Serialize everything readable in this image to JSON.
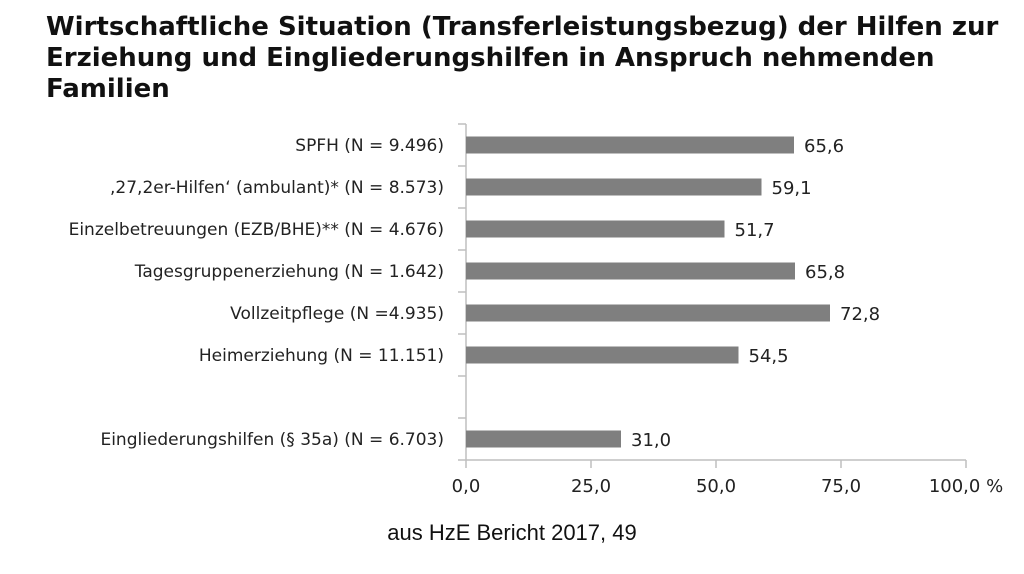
{
  "chart_data": {
    "type": "bar",
    "orientation": "horizontal",
    "title": "Wirtschaftliche Situation (Transferleistungsbezug) der Hilfen zur Erziehung und Eingliederungshilfen in Anspruch nehmenden Familien",
    "categories": [
      "SPFH (N = 9.496)",
      ",27,2er-Hilfen‘ (ambulant)* (N = 8.573)",
      "Einzelbetreuungen (EZB/BHE)** (N = 4.676)",
      "Tagesgruppenerziehung (N = 1.642)",
      "Vollzeitpflege (N =4.935)",
      "Heimerziehung (N = 11.151)",
      "",
      "Eingliederungshilfen (§ 35a) (N = 6.703)"
    ],
    "values": [
      65.6,
      59.1,
      51.7,
      65.8,
      72.8,
      54.5,
      null,
      31.0
    ],
    "value_labels": [
      "65,6",
      "59,1",
      "51,7",
      "65,8",
      "72,8",
      "54,5",
      "",
      "31,0"
    ],
    "xlim": [
      0,
      100
    ],
    "xticks": [
      0,
      25,
      50,
      75,
      100
    ],
    "xtick_labels": [
      "0,0",
      "25,0",
      "50,0",
      "75,0",
      "100,0 %"
    ],
    "bar_color": "#7f7f7f",
    "axis_color": "#bfbfbf",
    "grid": false,
    "legend": "none"
  },
  "source_note": "aus HzE Bericht 2017, 49"
}
